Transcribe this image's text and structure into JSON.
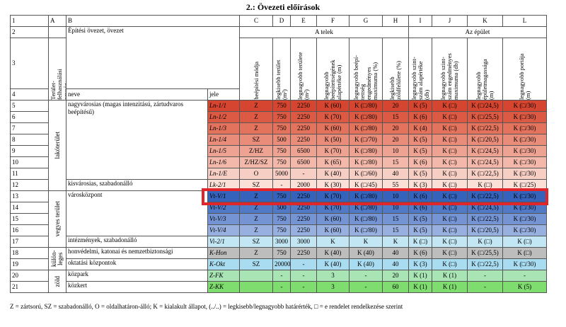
{
  "title": "2.: Övezeti előírások",
  "table": {
    "column_letters": [
      "1",
      "A",
      "B",
      "C",
      "D",
      "E",
      "F",
      "G",
      "H",
      "I",
      "J",
      "K",
      "L"
    ],
    "row_numbers": [
      "2",
      "3",
      "4"
    ],
    "zone_header": "Építési övezet, övezet",
    "plot_header": "A telek",
    "building_header": "Az épület",
    "area_header": "Terület-felhasználási egység",
    "name_header": "neve",
    "code_header": "jele",
    "column_headers": [
      "beépítési módja",
      "legkisebb terület (m²)",
      "legnagyobb területe (m²)",
      "legnagyobb beépítettségének alapértéke (m)",
      "legnagyobb beépí-tettség engedményes maximuma (%)",
      "legkisebb zöldfelülete (%)",
      "legnagyobb szint-szám alapértéke (db)",
      "legnagyobb szint-szám engedményes maximuma (db)",
      "legnagyobb épületmagassága (m)",
      "legnagyobb portája (m)"
    ],
    "areas": [
      {
        "label": "lakóterület",
        "kinds": [
          {
            "name": "nagyvárosias (magas intenzitású, zártudvaros beépítésű)",
            "rows": [
              {
                "num": "5",
                "code": "Ln-1/1",
                "color": "#d6452f",
                "values": [
                  "Z",
                  "750",
                  "2250",
                  "K (60)",
                  "K (□/80)",
                  "20",
                  "K (5)",
                  "K (□)",
                  "K (□/24,5)",
                  "K (□/30)"
                ]
              },
              {
                "num": "6",
                "code": "Ln-1/2",
                "color": "#dc5a43",
                "values": [
                  "Z",
                  "750",
                  "2250",
                  "K (70)",
                  "K (□/80)",
                  "15",
                  "K (6)",
                  "K (□)",
                  "K (□/25,5)",
                  "K (□/30)"
                ]
              },
              {
                "num": "7",
                "code": "Ln-1/3",
                "color": "#e3735d",
                "values": [
                  "Z",
                  "750",
                  "2250",
                  "K (60)",
                  "K (□/80)",
                  "20",
                  "K (4)",
                  "K (□)",
                  "K (□/22,5)",
                  "K (□/30)"
                ]
              },
              {
                "num": "8",
                "code": "Ln-1/4",
                "color": "#e98c79",
                "values": [
                  "SZ",
                  "500",
                  "2250",
                  "K (50)",
                  "K (□/70)",
                  "20",
                  "K (5)",
                  "K (□)",
                  "K (□/20,5)",
                  "K (□/30)"
                ]
              },
              {
                "num": "9",
                "code": "Ln-1/5",
                "color": "#eea292",
                "values": [
                  "Z/HZ",
                  "750",
                  "6500",
                  "K (70)",
                  "K (□/80)",
                  "10",
                  "K (5)",
                  "K (□)",
                  "K (□/24,5)",
                  "K (□/30)"
                ]
              },
              {
                "num": "10",
                "code": "Ln-1/6",
                "color": "#f3b8aa",
                "values": [
                  "Z/HZ/SZ",
                  "750",
                  "6500",
                  "K (65)",
                  "K (□/80)",
                  "15",
                  "K (6)",
                  "K (□)",
                  "K (□/24,5)",
                  "K (□/30)"
                ]
              },
              {
                "num": "11",
                "code": "Ln-1/E",
                "color": "#f7cec3",
                "values": [
                  "O",
                  "5000",
                  "-",
                  "K (40)",
                  "K (□/60)",
                  "40",
                  "K (5)",
                  "K (□)",
                  "K (□/22,5)",
                  "K (□/30)"
                ]
              }
            ]
          },
          {
            "name": "kisvárosias, szabadonálló",
            "rows": [
              {
                "num": "12",
                "code": "Lk-2/1",
                "color": "#fbe0d8",
                "values": [
                  "SZ",
                  "-",
                  "2000",
                  "K (30)",
                  "K (□/45)",
                  "55",
                  "K (3)",
                  "K (□)",
                  "K (□)",
                  "K (□/25)"
                ]
              }
            ]
          }
        ]
      },
      {
        "label": "vegyes terület",
        "kinds": [
          {
            "name": "városközpont",
            "rows": [
              {
                "num": "13",
                "code": "Vt-V/1",
                "color": "#3563bb",
                "values": [
                  "Z",
                  "750",
                  "2250",
                  "K (70)",
                  "K (□/80)",
                  "10",
                  "K (6)",
                  "K (□)",
                  "K (□/22,5)",
                  "K (□/30)"
                ]
              },
              {
                "num": "14",
                "code": "Vt-V/2",
                "color": "#5079c6",
                "values": [
                  "Z",
                  "500",
                  "2250",
                  "K (70)",
                  "K (□/80)",
                  "10",
                  "K (6)",
                  "K (□)",
                  "K (□/24,5)",
                  "K (□/30)"
                ]
              },
              {
                "num": "15",
                "code": "Vt-V/3",
                "color": "#7494d3",
                "values": [
                  "Z",
                  "750",
                  "2250",
                  "K (60)",
                  "K (□/80)",
                  "15",
                  "K (5)",
                  "K (□)",
                  "K (□/22,5)",
                  "K (□/30)"
                ]
              },
              {
                "num": "16",
                "code": "Vt-V/4",
                "color": "#97b0df",
                "values": [
                  "Z",
                  "750",
                  "2250",
                  "K (60)",
                  "K (□/80)",
                  "15",
                  "K (5)",
                  "K (□)",
                  "K (□/20,5)",
                  "K (□/30)"
                ]
              }
            ]
          },
          {
            "name": "intézmények, szabadonálló",
            "rows": [
              {
                "num": "17",
                "code": "Vi-2/1",
                "color": "#c2e6f4",
                "values": [
                  "SZ",
                  "3000",
                  "3000",
                  "K",
                  "K",
                  "K",
                  "K (□)",
                  "K (□)",
                  "K (□)",
                  "K (□)"
                ]
              }
            ]
          }
        ]
      },
      {
        "label": "külön-leges",
        "kinds": [
          {
            "name": "honvédelmi, katonai és nemzetbiztonsági",
            "rows": [
              {
                "num": "18",
                "code": "K-Hon",
                "color": "#bdbdbd",
                "values": [
                  "Z",
                  "750",
                  "2250",
                  "K (40)",
                  "K (40)",
                  "40",
                  "K (6)",
                  "K (□)",
                  "K (□/25,5)",
                  "K (□)"
                ]
              }
            ]
          },
          {
            "name": "oktatási központok",
            "rows": [
              {
                "num": "19",
                "code": "K-Okt",
                "color": "#a9dcf0",
                "values": [
                  "SZ",
                  "20000",
                  "-",
                  "K (40)",
                  "K (40)",
                  "40",
                  "K (3)",
                  "K (□)",
                  "K (□/22,5)",
                  "K (□/30)"
                ]
              }
            ]
          }
        ]
      },
      {
        "label": "zöld",
        "kinds": [
          {
            "name": "közpark",
            "rows": [
              {
                "num": "20",
                "code": "Z-FK",
                "color": "#a8e4b4",
                "values": [
                  null,
                  "-",
                  "-",
                  "3",
                  "-",
                  "20",
                  "K (1)",
                  "K (1)",
                  "-",
                  "-"
                ]
              }
            ]
          },
          {
            "name": "közkert",
            "rows": [
              {
                "num": "21",
                "code": "Z-KK",
                "color": "#7fdc6e",
                "values": [
                  null,
                  "-",
                  "-",
                  "3",
                  "-",
                  "60",
                  "K (1)",
                  "K (1)",
                  "-",
                  "K (5)"
                ]
              }
            ]
          }
        ]
      }
    ]
  },
  "footnote": "Z = zártsorú, SZ = szabadonálló, O = oldalhatáron-álló; K = kialakult állapot, (../..) = legkisebb/legnagyobb határérték, □ = e rendelet rendelkezése szerint"
}
